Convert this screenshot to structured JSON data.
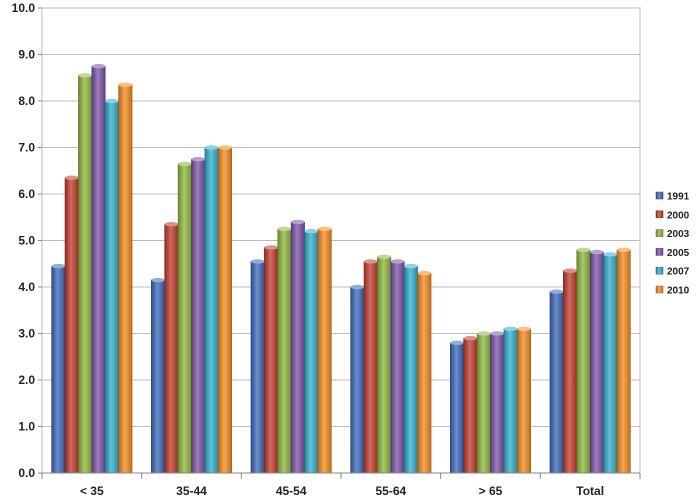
{
  "chart_data": {
    "type": "bar",
    "categories": [
      "< 35",
      "35-44",
      "45-54",
      "55-64",
      "> 65",
      "Total"
    ],
    "series": [
      {
        "name": "1991",
        "color": "#3a68b8",
        "values": [
          4.45,
          4.15,
          4.55,
          4.0,
          2.8,
          3.9
        ]
      },
      {
        "name": "2000",
        "color": "#c0392b",
        "values": [
          6.35,
          5.35,
          4.85,
          4.55,
          2.9,
          4.35
        ]
      },
      {
        "name": "2003",
        "color": "#8cb63c",
        "values": [
          8.55,
          6.65,
          5.25,
          4.65,
          3.0,
          4.8
        ]
      },
      {
        "name": "2005",
        "color": "#7b52a6",
        "values": [
          8.75,
          6.75,
          5.4,
          4.55,
          3.0,
          4.75
        ]
      },
      {
        "name": "2007",
        "color": "#2eaecb",
        "values": [
          8.0,
          7.0,
          5.2,
          4.45,
          3.1,
          4.7
        ]
      },
      {
        "name": "2010",
        "color": "#f28a1e",
        "values": [
          8.35,
          7.0,
          5.25,
          4.3,
          3.1,
          4.8
        ]
      }
    ],
    "ylim": [
      0,
      10
    ],
    "yticks": [
      "0.0",
      "1.0",
      "2.0",
      "3.0",
      "4.0",
      "5.0",
      "6.0",
      "7.0",
      "8.0",
      "9.0",
      "10.0"
    ],
    "title": "",
    "xlabel": "",
    "ylabel": "",
    "grid": true,
    "legend_position": "right"
  }
}
